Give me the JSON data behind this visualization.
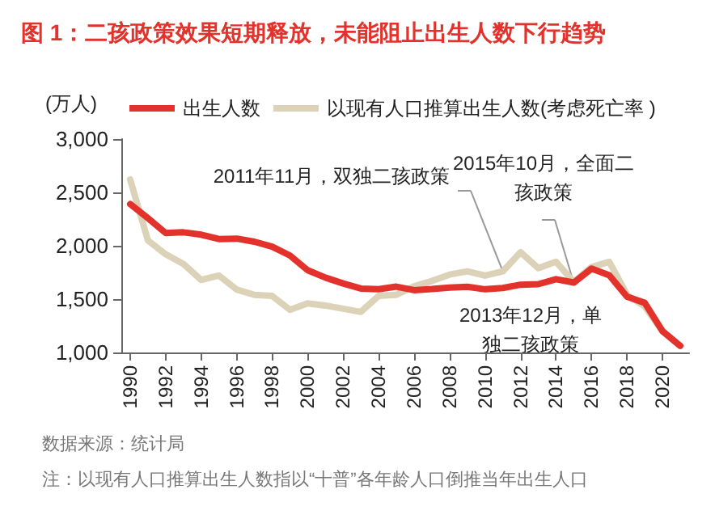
{
  "chart_data": {
    "type": "line",
    "title": "图 1：二孩政策效果短期释放，未能阻止出生人数下行趋势",
    "ylabel": "(万人)",
    "x": [
      1990,
      1991,
      1992,
      1993,
      1994,
      1995,
      1996,
      1997,
      1998,
      1999,
      2000,
      2001,
      2002,
      2003,
      2004,
      2005,
      2006,
      2007,
      2008,
      2009,
      2010,
      2011,
      2012,
      2013,
      2014,
      2015,
      2016,
      2017,
      2018,
      2019,
      2020,
      2021
    ],
    "series": [
      {
        "name": "出生人数",
        "color": "#e3322b",
        "values": [
          2391,
          2258,
          2119,
          2126,
          2104,
          2063,
          2067,
          2038,
          1991,
          1909,
          1771,
          1702,
          1647,
          1599,
          1593,
          1617,
          1584,
          1594,
          1608,
          1615,
          1592,
          1604,
          1635,
          1640,
          1687,
          1655,
          1786,
          1723,
          1523,
          1465,
          1200,
          1062
        ]
      },
      {
        "name": "以现有人口推算出生人数(考虑死亡率 )",
        "color": "#dcd2b8",
        "values": [
          2620,
          2050,
          1920,
          1830,
          1680,
          1720,
          1590,
          1540,
          1530,
          1400,
          1460,
          1440,
          1410,
          1380,
          1530,
          1540,
          1620,
          1670,
          1730,
          1760,
          1720,
          1760,
          1940,
          1790,
          1850,
          1660,
          1800,
          1850,
          1540,
          1430,
          1200,
          null
        ]
      }
    ],
    "xlim": [
      1989.5,
      2021.5
    ],
    "xticks": [
      1990,
      1992,
      1994,
      1996,
      1998,
      2000,
      2002,
      2004,
      2006,
      2008,
      2010,
      2012,
      2014,
      2016,
      2018,
      2020
    ],
    "ylim": [
      1000,
      3000
    ],
    "yticks": [
      {
        "value": 1000,
        "label": "1,000"
      },
      {
        "value": 1500,
        "label": "1,500"
      },
      {
        "value": 2000,
        "label": "2,000"
      },
      {
        "value": 2500,
        "label": "2,500"
      },
      {
        "value": 3000,
        "label": "3,000"
      }
    ],
    "grid": false,
    "legend": "top",
    "marker": "none",
    "annotations": [
      {
        "text": "2011年11月，双独二孩政策",
        "x": 2011,
        "y": 1760
      },
      {
        "text": "2015年10月，全面二孩政策",
        "x": 2015,
        "y": 1650
      },
      "2013年12月，单独二孩政策",
      "数据来源：统计局",
      "注：以现有人口推算出生人数指以“十普”各年龄人口倒推当年出生人口"
    ]
  }
}
